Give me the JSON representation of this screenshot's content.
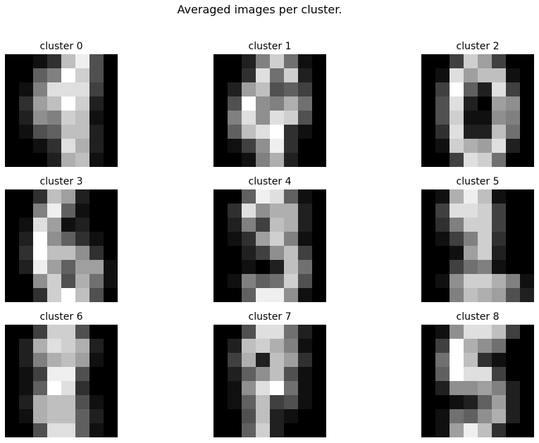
{
  "figure": {
    "title": "Averaged images per cluster."
  },
  "chart_data": {
    "type": "heatmap",
    "colormap": "gray",
    "value_range": [
      0,
      16
    ],
    "grid_size": [
      8,
      8
    ],
    "panels": [
      {
        "title": "cluster 0",
        "values": [
          [
            0,
            0,
            1,
            3,
            12,
            15,
            5,
            0
          ],
          [
            0,
            0,
            6,
            8,
            16,
            13,
            5,
            0
          ],
          [
            0,
            1,
            8,
            14,
            14,
            14,
            4,
            0
          ],
          [
            0,
            3,
            10,
            12,
            16,
            13,
            2,
            0
          ],
          [
            0,
            2,
            9,
            8,
            13,
            12,
            1,
            0
          ],
          [
            0,
            1,
            5,
            6,
            12,
            12,
            2,
            0
          ],
          [
            0,
            0,
            1,
            3,
            14,
            11,
            2,
            0
          ],
          [
            0,
            0,
            0,
            2,
            11,
            12,
            1,
            0
          ]
        ]
      },
      {
        "title": "cluster 1",
        "values": [
          [
            0,
            0,
            2,
            8,
            13,
            7,
            1,
            0
          ],
          [
            0,
            0,
            3,
            14,
            7,
            13,
            2,
            0
          ],
          [
            0,
            2,
            10,
            12,
            5,
            6,
            4,
            0
          ],
          [
            0,
            5,
            16,
            9,
            8,
            11,
            7,
            0
          ],
          [
            0,
            8,
            14,
            9,
            14,
            13,
            5,
            0
          ],
          [
            0,
            6,
            12,
            14,
            16,
            3,
            1,
            0
          ],
          [
            0,
            1,
            4,
            9,
            15,
            3,
            0,
            0
          ],
          [
            0,
            0,
            1,
            8,
            11,
            2,
            0,
            0
          ]
        ]
      },
      {
        "title": "cluster 2",
        "values": [
          [
            0,
            0,
            4,
            13,
            10,
            4,
            0,
            0
          ],
          [
            0,
            1,
            14,
            10,
            12,
            12,
            1,
            0
          ],
          [
            0,
            4,
            16,
            6,
            2,
            14,
            4,
            0
          ],
          [
            0,
            5,
            14,
            2,
            0,
            10,
            9,
            0
          ],
          [
            0,
            5,
            13,
            1,
            1,
            9,
            8,
            0
          ],
          [
            0,
            3,
            14,
            2,
            2,
            12,
            7,
            0
          ],
          [
            0,
            1,
            13,
            11,
            10,
            14,
            2,
            0
          ],
          [
            0,
            0,
            4,
            14,
            13,
            7,
            0,
            0
          ]
        ]
      },
      {
        "title": "cluster 3",
        "values": [
          [
            0,
            0,
            3,
            12,
            10,
            2,
            0,
            0
          ],
          [
            0,
            0,
            8,
            15,
            6,
            1,
            0,
            0
          ],
          [
            0,
            1,
            14,
            10,
            1,
            2,
            0,
            0
          ],
          [
            0,
            2,
            16,
            9,
            6,
            3,
            1,
            0
          ],
          [
            0,
            3,
            16,
            12,
            12,
            9,
            3,
            0
          ],
          [
            0,
            2,
            15,
            10,
            6,
            10,
            10,
            1
          ],
          [
            0,
            0,
            9,
            13,
            5,
            11,
            7,
            1
          ],
          [
            0,
            0,
            3,
            13,
            16,
            12,
            5,
            0
          ]
        ]
      },
      {
        "title": "cluster 4",
        "values": [
          [
            0,
            0,
            6,
            15,
            14,
            6,
            1,
            0
          ],
          [
            0,
            3,
            14,
            9,
            11,
            11,
            2,
            0
          ],
          [
            0,
            2,
            8,
            4,
            12,
            11,
            2,
            0
          ],
          [
            0,
            1,
            3,
            10,
            13,
            8,
            1,
            0
          ],
          [
            0,
            0,
            2,
            4,
            9,
            12,
            4,
            0
          ],
          [
            0,
            0,
            1,
            0,
            2,
            12,
            7,
            0
          ],
          [
            0,
            1,
            8,
            6,
            7,
            13,
            5,
            0
          ],
          [
            0,
            0,
            6,
            15,
            15,
            9,
            1,
            0
          ]
        ]
      },
      {
        "title": "cluster 5",
        "values": [
          [
            0,
            1,
            11,
            15,
            12,
            1,
            0,
            0
          ],
          [
            0,
            4,
            14,
            14,
            13,
            4,
            0,
            0
          ],
          [
            0,
            3,
            8,
            13,
            13,
            4,
            0,
            0
          ],
          [
            0,
            1,
            4,
            8,
            13,
            3,
            0,
            0
          ],
          [
            0,
            0,
            1,
            10,
            13,
            2,
            0,
            0
          ],
          [
            0,
            0,
            4,
            7,
            8,
            1,
            0,
            0
          ],
          [
            0,
            1,
            9,
            13,
            13,
            11,
            8,
            1
          ],
          [
            0,
            0,
            8,
            12,
            11,
            10,
            5,
            2
          ]
        ]
      },
      {
        "title": "cluster 6",
        "values": [
          [
            0,
            0,
            4,
            13,
            13,
            5,
            0,
            0
          ],
          [
            0,
            2,
            11,
            14,
            13,
            11,
            2,
            0
          ],
          [
            0,
            2,
            8,
            11,
            12,
            10,
            1,
            0
          ],
          [
            0,
            1,
            4,
            15,
            15,
            5,
            0,
            0
          ],
          [
            0,
            1,
            6,
            16,
            14,
            3,
            0,
            0
          ],
          [
            0,
            2,
            11,
            12,
            12,
            5,
            1,
            0
          ],
          [
            0,
            1,
            11,
            12,
            12,
            6,
            2,
            0
          ],
          [
            0,
            0,
            5,
            14,
            14,
            6,
            1,
            0
          ]
        ]
      },
      {
        "title": "cluster 7",
        "values": [
          [
            0,
            0,
            5,
            14,
            14,
            7,
            2,
            0
          ],
          [
            0,
            2,
            12,
            13,
            11,
            8,
            1,
            0
          ],
          [
            0,
            4,
            11,
            2,
            12,
            10,
            3,
            0
          ],
          [
            0,
            2,
            6,
            9,
            12,
            5,
            1,
            0
          ],
          [
            0,
            1,
            9,
            14,
            16,
            7,
            1,
            0
          ],
          [
            0,
            1,
            6,
            12,
            4,
            5,
            1,
            0
          ],
          [
            0,
            0,
            5,
            12,
            2,
            1,
            0,
            0
          ],
          [
            0,
            0,
            6,
            13,
            2,
            0,
            0,
            0
          ]
        ]
      },
      {
        "title": "cluster 8",
        "values": [
          [
            0,
            1,
            9,
            14,
            14,
            12,
            4,
            0
          ],
          [
            0,
            4,
            16,
            11,
            9,
            7,
            0,
            0
          ],
          [
            0,
            7,
            16,
            12,
            3,
            1,
            0,
            0
          ],
          [
            0,
            6,
            16,
            14,
            14,
            4,
            0,
            0
          ],
          [
            0,
            2,
            9,
            9,
            10,
            8,
            2,
            0
          ],
          [
            0,
            0,
            1,
            2,
            6,
            10,
            2,
            0
          ],
          [
            0,
            1,
            7,
            6,
            9,
            11,
            2,
            0
          ],
          [
            0,
            1,
            10,
            15,
            12,
            3,
            0,
            0
          ]
        ]
      }
    ]
  }
}
